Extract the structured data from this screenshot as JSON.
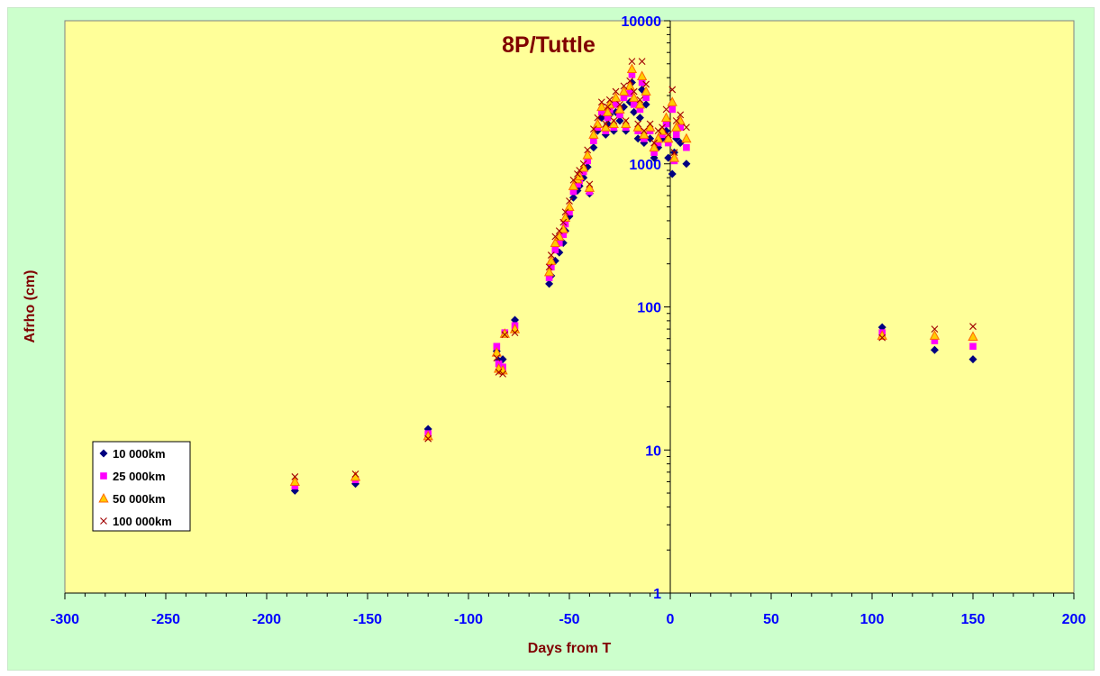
{
  "chart_data": {
    "type": "scatter",
    "title": "8P/Tuttle",
    "xlabel": "Days from T",
    "ylabel": "Afrho (cm)",
    "xlim": [
      -300,
      200
    ],
    "ylim": [
      1,
      10000
    ],
    "yscale": "log",
    "x_ticks": [
      "-300",
      "-250",
      "-200",
      "-150",
      "-100",
      "-50",
      "0",
      "50",
      "100",
      "150",
      "200"
    ],
    "y_ticks": [
      "1",
      "10",
      "100",
      "1000",
      "10000"
    ],
    "grid": false,
    "legend_position": "bottom-left",
    "series": [
      {
        "name": "10 000km",
        "marker": "diamond",
        "color": "#000080",
        "x": [
          -186,
          -156,
          -120,
          -86,
          -85,
          -83,
          -77,
          -60,
          -59,
          -57,
          -55,
          -53,
          -52,
          -50,
          -48,
          -46,
          -45,
          -43,
          -41,
          -40,
          -38,
          -36,
          -34,
          -32,
          -31,
          -30,
          -28,
          -27,
          -25,
          -23,
          -22,
          -20,
          -19,
          -18,
          -16,
          -15,
          -14,
          -13,
          -12,
          -10,
          -8,
          -6,
          -4,
          -2,
          -1,
          1,
          2,
          3,
          5,
          8,
          105,
          131,
          150
        ],
        "y": [
          5.2,
          5.8,
          14,
          49,
          42,
          43,
          81,
          145,
          165,
          210,
          240,
          280,
          340,
          430,
          580,
          650,
          700,
          800,
          950,
          620,
          1300,
          1700,
          2100,
          1600,
          1900,
          2200,
          1700,
          2300,
          2000,
          2500,
          1700,
          2700,
          3700,
          2300,
          1500,
          2100,
          3300,
          1400,
          2600,
          1500,
          1100,
          1300,
          1500,
          1700,
          1100,
          850,
          1200,
          1500,
          1400,
          1000,
          72,
          50,
          43
        ]
      },
      {
        "name": "25 000km",
        "marker": "square",
        "color": "#ff00ff",
        "x": [
          -186,
          -156,
          -120,
          -86,
          -85,
          -83,
          -82,
          -77,
          -60,
          -59,
          -57,
          -55,
          -53,
          -52,
          -50,
          -48,
          -46,
          -45,
          -43,
          -41,
          -40,
          -38,
          -36,
          -34,
          -32,
          -31,
          -30,
          -28,
          -27,
          -25,
          -23,
          -22,
          -20,
          -19,
          -18,
          -16,
          -15,
          -14,
          -13,
          -12,
          -10,
          -8,
          -6,
          -4,
          -2,
          -1,
          1,
          2,
          3,
          5,
          8,
          105,
          131,
          150
        ],
        "y": [
          5.6,
          6.2,
          13,
          53,
          40,
          38,
          66,
          74,
          160,
          190,
          250,
          280,
          320,
          380,
          460,
          640,
          720,
          760,
          880,
          1050,
          640,
          1450,
          1800,
          2300,
          1700,
          2100,
          2400,
          1800,
          2600,
          2200,
          2900,
          1800,
          3100,
          4200,
          2600,
          1700,
          2400,
          3700,
          1500,
          2900,
          1700,
          1200,
          1400,
          1600,
          1900,
          1400,
          2400,
          1050,
          1600,
          1800,
          1300,
          66,
          58,
          53
        ]
      },
      {
        "name": "50 000km",
        "marker": "triangle",
        "color": "#ffcc00",
        "x": [
          -186,
          -156,
          -120,
          -86,
          -85,
          -83,
          -82,
          -77,
          -60,
          -59,
          -57,
          -55,
          -53,
          -52,
          -50,
          -48,
          -46,
          -45,
          -43,
          -41,
          -40,
          -38,
          -36,
          -34,
          -32,
          -31,
          -30,
          -28,
          -27,
          -25,
          -23,
          -22,
          -20,
          -19,
          -18,
          -16,
          -15,
          -14,
          -13,
          -12,
          -10,
          -8,
          -6,
          -4,
          -2,
          -1,
          1,
          2,
          3,
          5,
          8,
          105,
          131,
          150
        ],
        "y": [
          6.0,
          6.5,
          12.5,
          48,
          37,
          36,
          65,
          70,
          175,
          210,
          280,
          310,
          350,
          420,
          500,
          700,
          780,
          820,
          940,
          1150,
          680,
          1600,
          1900,
          2500,
          1800,
          2300,
          2600,
          1900,
          2900,
          2400,
          3200,
          1900,
          3500,
          4600,
          2900,
          1800,
          2600,
          4100,
          1600,
          3200,
          1800,
          1300,
          1500,
          1700,
          2100,
          1500,
          2700,
          1100,
          1800,
          2000,
          1500,
          63,
          63,
          62
        ]
      },
      {
        "name": "100 000km",
        "marker": "x",
        "color": "#a00000",
        "x": [
          -186,
          -156,
          -120,
          -86,
          -85,
          -83,
          -82,
          -77,
          -60,
          -59,
          -57,
          -55,
          -53,
          -52,
          -50,
          -48,
          -46,
          -45,
          -43,
          -41,
          -40,
          -38,
          -36,
          -34,
          -32,
          -31,
          -30,
          -28,
          -27,
          -25,
          -23,
          -22,
          -20,
          -19,
          -18,
          -16,
          -15,
          -14,
          -13,
          -12,
          -10,
          -8,
          -6,
          -4,
          -2,
          -1,
          1,
          2,
          3,
          5,
          8,
          105,
          131,
          150
        ],
        "y": [
          6.5,
          6.8,
          12,
          44,
          35,
          34,
          64,
          66,
          190,
          230,
          310,
          340,
          390,
          460,
          550,
          770,
          850,
          900,
          1000,
          1250,
          720,
          1750,
          2100,
          2700,
          1900,
          2500,
          2800,
          2000,
          3200,
          2600,
          3500,
          2000,
          3800,
          5200,
          3200,
          1900,
          2800,
          5200,
          1700,
          3600,
          1900,
          1400,
          1700,
          1800,
          2400,
          1600,
          3300,
          1200,
          2000,
          2200,
          1800,
          61,
          70,
          73
        ]
      }
    ]
  }
}
